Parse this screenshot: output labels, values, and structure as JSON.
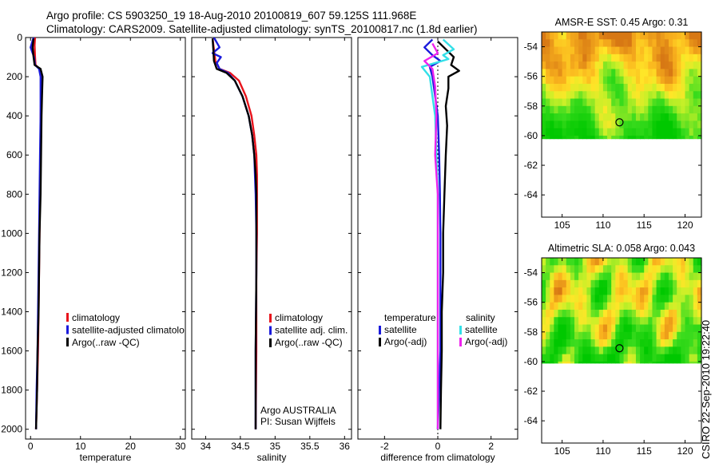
{
  "header": {
    "line1": "Argo profile: CS 5903250_19 18-Aug-2010 20100819_607 59.125S 111.968E",
    "line2": "Climatology: CARS2009. Satellite-adjusted climatology: synTS_20100817.nc (1.8d earlier)"
  },
  "side_label": "CSIRO 22-Sep-2010 19:22:40",
  "colors": {
    "red": "#e8141c",
    "blue": "#1a1adc",
    "black": "#000000",
    "cyan": "#33e0e8",
    "magenta": "#ee22ee"
  },
  "chart_data": [
    {
      "id": "temperature",
      "type": "line",
      "xlabel": "temperature",
      "ylabel": "",
      "xlim": [
        -1,
        31
      ],
      "ylim": [
        2050,
        0
      ],
      "xticks": [
        0,
        10,
        20,
        30
      ],
      "xticklabels": [
        "0",
        "10",
        "20",
        "30"
      ],
      "yticks": [
        0,
        200,
        400,
        600,
        800,
        1000,
        1200,
        1400,
        1600,
        1800,
        2000
      ],
      "yticklabels": [
        "0",
        "200",
        "400",
        "600",
        "800",
        "1000",
        "1200",
        "1400",
        "1600",
        "1800",
        "2000"
      ],
      "legend": [
        "climatology",
        "satellite-adjusted climatology",
        "Argo(..raw -QC)"
      ],
      "series": [
        {
          "name": "climatology",
          "color": "red",
          "points": [
            [
              0.9,
              0
            ],
            [
              0.8,
              40
            ],
            [
              0.9,
              100
            ],
            [
              1.0,
              140
            ],
            [
              1.8,
              160
            ],
            [
              2.1,
              200
            ],
            [
              2.1,
              300
            ],
            [
              2.0,
              400
            ],
            [
              2.0,
              600
            ],
            [
              1.9,
              800
            ],
            [
              1.8,
              1000
            ],
            [
              1.7,
              1200
            ],
            [
              1.6,
              1400
            ],
            [
              1.5,
              1600
            ],
            [
              1.3,
              1800
            ],
            [
              1.1,
              2000
            ]
          ]
        },
        {
          "name": "satellite-adjusted climatology",
          "color": "blue",
          "points": [
            [
              0.6,
              0
            ],
            [
              0.0,
              50
            ],
            [
              0.7,
              100
            ],
            [
              0.9,
              140
            ],
            [
              1.7,
              160
            ],
            [
              2.0,
              200
            ],
            [
              2.0,
              300
            ],
            [
              2.0,
              400
            ],
            [
              1.9,
              600
            ],
            [
              1.8,
              800
            ],
            [
              1.7,
              1000
            ],
            [
              1.6,
              1200
            ],
            [
              1.5,
              1400
            ],
            [
              1.4,
              1600
            ],
            [
              1.2,
              1800
            ],
            [
              1.1,
              2000
            ]
          ]
        },
        {
          "name": "Argo(..raw -QC)",
          "color": "black",
          "points": [
            [
              0.6,
              5
            ],
            [
              0.4,
              50
            ],
            [
              0.6,
              100
            ],
            [
              0.8,
              140
            ],
            [
              2.0,
              160
            ],
            [
              2.4,
              200
            ],
            [
              2.3,
              300
            ],
            [
              2.2,
              400
            ],
            [
              2.1,
              600
            ],
            [
              2.0,
              800
            ],
            [
              1.8,
              1000
            ],
            [
              1.7,
              1200
            ],
            [
              1.6,
              1400
            ],
            [
              1.4,
              1600
            ],
            [
              1.3,
              1800
            ],
            [
              1.1,
              2000
            ]
          ]
        }
      ]
    },
    {
      "id": "salinity",
      "type": "line",
      "xlabel": "salinity",
      "xlim": [
        33.8,
        36.1
      ],
      "ylim": [
        2050,
        0
      ],
      "xticks": [
        34,
        34.5,
        35,
        35.5,
        36
      ],
      "xticklabels": [
        "34",
        "34.5",
        "35",
        "35.5",
        "36"
      ],
      "legend": [
        "climatology",
        "satellite adj. clim.",
        "Argo(..raw -QC)"
      ],
      "annotation": [
        "Argo AUSTRALIA",
        "PI: Susan Wijffels"
      ],
      "series": [
        {
          "name": "climatology",
          "color": "red",
          "points": [
            [
              34.1,
              5
            ],
            [
              34.12,
              60
            ],
            [
              34.14,
              120
            ],
            [
              34.2,
              160
            ],
            [
              34.35,
              180
            ],
            [
              34.48,
              220
            ],
            [
              34.58,
              300
            ],
            [
              34.66,
              400
            ],
            [
              34.7,
              500
            ],
            [
              34.73,
              600
            ],
            [
              34.74,
              700
            ],
            [
              34.74,
              800
            ],
            [
              34.74,
              1000
            ],
            [
              34.73,
              1200
            ],
            [
              34.73,
              1600
            ],
            [
              34.72,
              2000
            ]
          ]
        },
        {
          "name": "satellite adj. clim.",
          "color": "blue",
          "points": [
            [
              34.12,
              0
            ],
            [
              34.2,
              50
            ],
            [
              34.1,
              80
            ],
            [
              34.22,
              100
            ],
            [
              34.16,
              130
            ],
            [
              34.2,
              160
            ],
            [
              34.32,
              180
            ],
            [
              34.42,
              220
            ],
            [
              34.53,
              300
            ],
            [
              34.62,
              400
            ],
            [
              34.67,
              500
            ],
            [
              34.7,
              600
            ],
            [
              34.71,
              700
            ],
            [
              34.72,
              800
            ],
            [
              34.73,
              1000
            ],
            [
              34.73,
              1200
            ],
            [
              34.72,
              1600
            ],
            [
              34.72,
              2000
            ]
          ]
        },
        {
          "name": "Argo(..raw -QC)",
          "color": "black",
          "points": [
            [
              34.1,
              5
            ],
            [
              34.11,
              60
            ],
            [
              34.12,
              120
            ],
            [
              34.16,
              160
            ],
            [
              34.3,
              180
            ],
            [
              34.42,
              220
            ],
            [
              34.53,
              300
            ],
            [
              34.62,
              400
            ],
            [
              34.67,
              500
            ],
            [
              34.7,
              600
            ],
            [
              34.72,
              700
            ],
            [
              34.73,
              800
            ],
            [
              34.73,
              1000
            ],
            [
              34.73,
              1200
            ],
            [
              34.72,
              1600
            ],
            [
              34.72,
              2000
            ]
          ]
        }
      ]
    },
    {
      "id": "difference",
      "type": "line",
      "xlabel": "difference from climatology",
      "xlim": [
        -3,
        3
      ],
      "ylim": [
        2050,
        0
      ],
      "xticks": [
        -2,
        0,
        2
      ],
      "xticklabels": [
        "-2",
        "0",
        "2"
      ],
      "legend_headers": [
        "temperature",
        "salinity"
      ],
      "legend": [
        "satellite",
        "Argo(-adj)",
        "satellite",
        "Argo(-adj)"
      ],
      "series": [
        {
          "name": "temperature satellite",
          "color": "blue",
          "points": [
            [
              -0.2,
              10
            ],
            [
              -0.5,
              50
            ],
            [
              -0.2,
              90
            ],
            [
              0.1,
              120
            ],
            [
              -0.3,
              150
            ],
            [
              -0.2,
              200
            ],
            [
              -0.1,
              300
            ],
            [
              0.0,
              400
            ],
            [
              0.05,
              600
            ],
            [
              0.08,
              800
            ],
            [
              0.1,
              1000
            ],
            [
              0.1,
              1200
            ],
            [
              0.1,
              1400
            ],
            [
              0.1,
              1600
            ],
            [
              0.05,
              1800
            ],
            [
              0.0,
              2000
            ]
          ]
        },
        {
          "name": "temperature Argo(-adj)",
          "color": "black",
          "points": [
            [
              0.0,
              20
            ],
            [
              0.3,
              60
            ],
            [
              0.6,
              100
            ],
            [
              0.5,
              140
            ],
            [
              0.8,
              170
            ],
            [
              0.4,
              200
            ],
            [
              0.4,
              260
            ],
            [
              0.3,
              350
            ],
            [
              0.35,
              450
            ],
            [
              0.3,
              600
            ],
            [
              0.25,
              800
            ],
            [
              0.2,
              1000
            ],
            [
              0.2,
              1200
            ],
            [
              0.15,
              1400
            ],
            [
              0.15,
              1600
            ],
            [
              0.12,
              1800
            ],
            [
              0.1,
              2000
            ]
          ]
        },
        {
          "name": "salinity satellite",
          "color": "cyan",
          "points": [
            [
              0.2,
              10
            ],
            [
              0.6,
              60
            ],
            [
              0.2,
              90
            ],
            [
              0.4,
              110
            ],
            [
              -0.6,
              150
            ],
            [
              -0.3,
              200
            ],
            [
              -0.2,
              300
            ],
            [
              -0.1,
              400
            ],
            [
              -0.05,
              600
            ],
            [
              0.0,
              800
            ],
            [
              0.0,
              1000
            ],
            [
              0.0,
              1200
            ],
            [
              0.0,
              1400
            ],
            [
              0.0,
              1600
            ],
            [
              0.0,
              1800
            ],
            [
              0.0,
              2000
            ]
          ]
        },
        {
          "name": "salinity Argo(-adj)",
          "color": "magenta",
          "points": [
            [
              -0.2,
              30
            ],
            [
              0.0,
              80
            ],
            [
              -0.5,
              120
            ],
            [
              -0.2,
              160
            ],
            [
              -0.1,
              250
            ],
            [
              -0.05,
              400
            ],
            [
              -0.1,
              600
            ],
            [
              0.0,
              800
            ],
            [
              0.0,
              1200
            ],
            [
              0.0,
              1600
            ],
            [
              0.0,
              2000
            ]
          ]
        }
      ]
    },
    {
      "id": "sst_map",
      "type": "heatmap",
      "title": "AMSR-E SST: 0.45 Argo: 0.31",
      "xlim": [
        102.5,
        122
      ],
      "ylim": [
        -65.5,
        -53
      ],
      "xticks": [
        105,
        110,
        115,
        120
      ],
      "xticklabels": [
        "105",
        "110",
        "115",
        "120"
      ],
      "yticks": [
        -54,
        -56,
        -58,
        -60,
        -62,
        -64
      ],
      "yticklabels": [
        "-54",
        "-56",
        "-58",
        "-60",
        "-62",
        "-64"
      ],
      "data_lat_min": -60.2,
      "marker": {
        "lon": 112,
        "lat": -59.1
      }
    },
    {
      "id": "sla_map",
      "type": "heatmap",
      "title": "Altimetric SLA: 0.058 Argo: 0.043",
      "xlim": [
        102.5,
        122
      ],
      "ylim": [
        -65.5,
        -53
      ],
      "xticks": [
        105,
        110,
        115,
        120
      ],
      "xticklabels": [
        "105",
        "110",
        "115",
        "120"
      ],
      "yticks": [
        -54,
        -56,
        -58,
        -60,
        -62,
        -64
      ],
      "yticklabels": [
        "-54",
        "-56",
        "-58",
        "-60",
        "-62",
        "-64"
      ],
      "data_lat_min": -60.1,
      "marker": {
        "lon": 112,
        "lat": -59.1
      }
    }
  ]
}
